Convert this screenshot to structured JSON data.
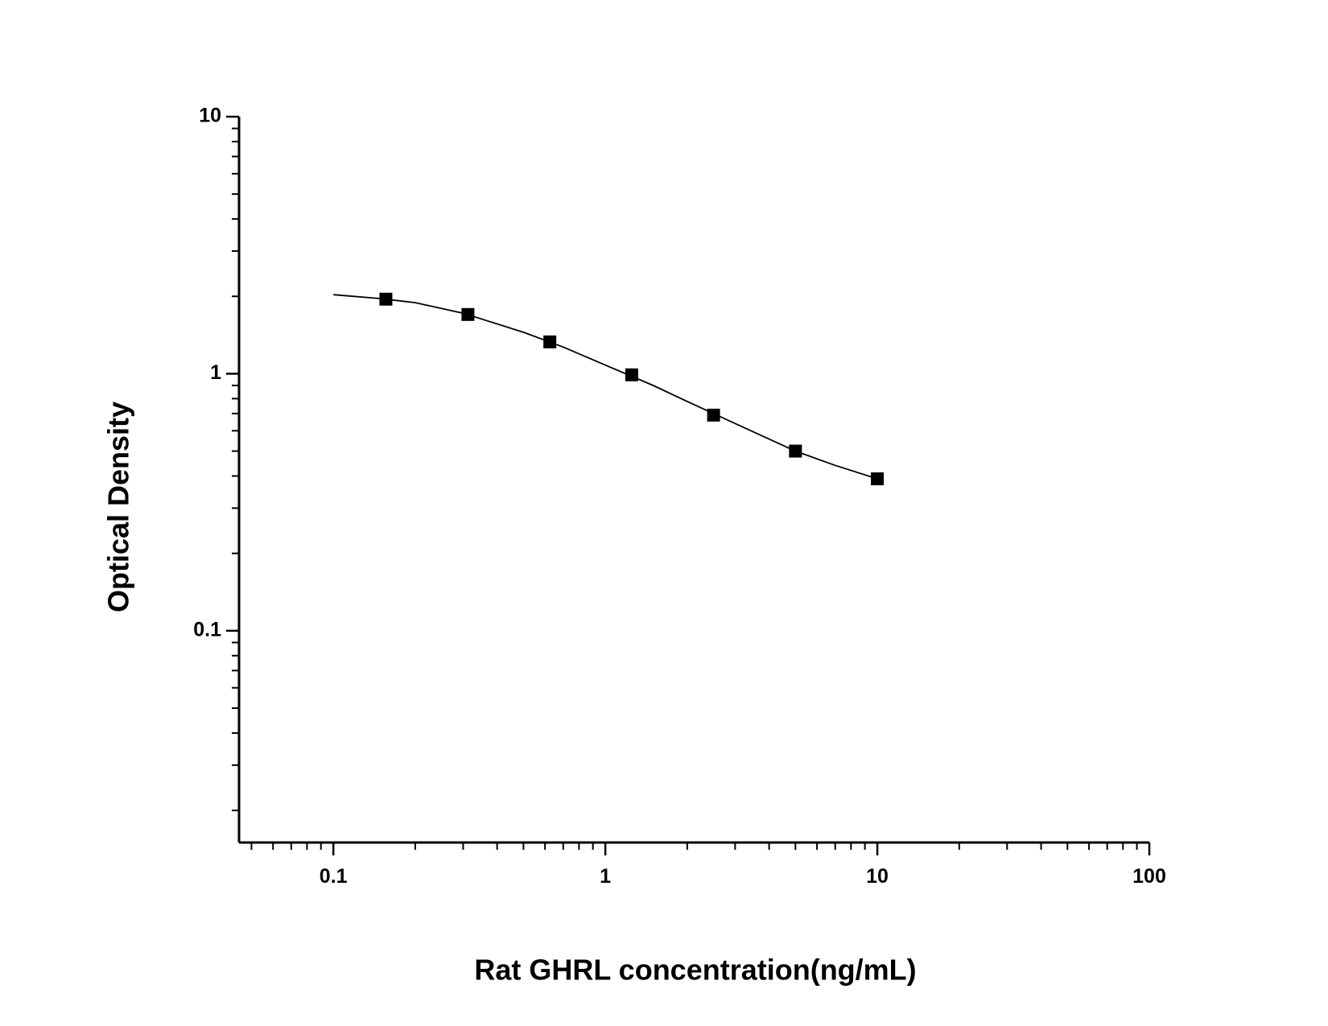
{
  "chart_data": {
    "type": "scatter",
    "xlabel": "Rat GHRL concentration(ng/mL)",
    "ylabel": "Optical Density",
    "x": [
      0.156,
      0.3125,
      0.625,
      1.25,
      2.5,
      5,
      10
    ],
    "values": [
      1.95,
      1.7,
      1.33,
      0.99,
      0.69,
      0.5,
      0.39
    ],
    "color": "#000000",
    "curve": {
      "x": [
        0.1,
        0.15,
        0.2,
        0.3,
        0.5,
        0.7,
        1,
        1.5,
        2,
        3,
        5,
        7,
        10
      ],
      "y": [
        2.03,
        1.96,
        1.89,
        1.72,
        1.45,
        1.27,
        1.08,
        0.9,
        0.78,
        0.64,
        0.5,
        0.44,
        0.39
      ]
    },
    "xscale": "log",
    "yscale": "log",
    "xlim": [
      0.045,
      100
    ],
    "ylim": [
      0.015,
      10
    ],
    "xticks": [
      0.1,
      1,
      10,
      100
    ],
    "yticks": [
      0.1,
      1,
      10
    ],
    "x_minor_ticks": [
      0.05,
      0.06,
      0.07,
      0.08,
      0.09,
      0.2,
      0.3,
      0.4,
      0.5,
      0.6,
      0.7,
      0.8,
      0.9,
      2,
      3,
      4,
      5,
      6,
      7,
      8,
      9,
      20,
      30,
      40,
      50,
      60,
      70,
      80,
      90
    ],
    "y_minor_ticks": [
      0.02,
      0.03,
      0.04,
      0.05,
      0.06,
      0.07,
      0.08,
      0.09,
      0.2,
      0.3,
      0.4,
      0.5,
      0.6,
      0.7,
      0.8,
      0.9,
      2,
      3,
      4,
      5,
      6,
      7,
      8,
      9
    ],
    "grid": false
  }
}
